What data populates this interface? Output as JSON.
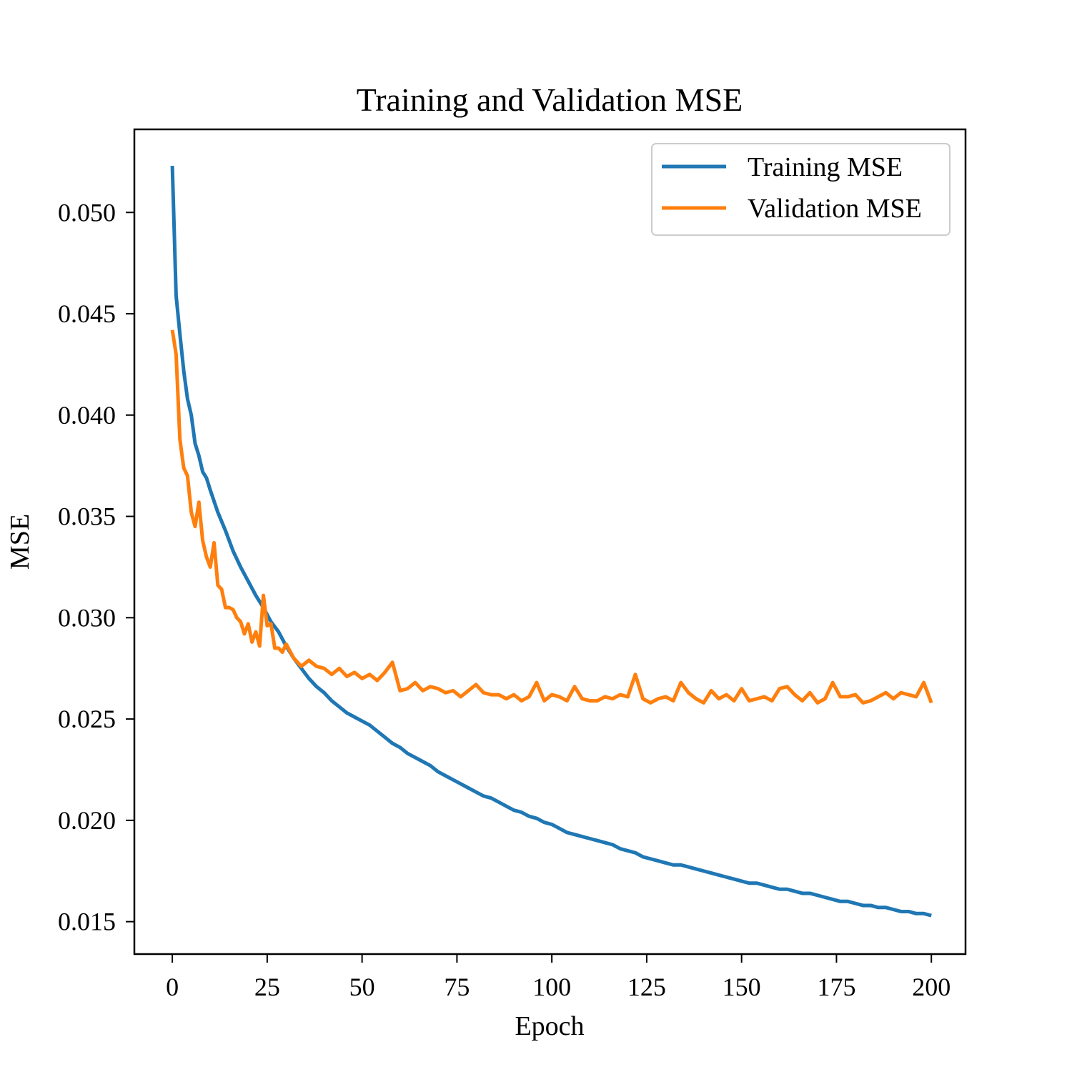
{
  "chart_data": {
    "type": "line",
    "title": "Training and Validation MSE",
    "xlabel": "Epoch",
    "ylabel": "MSE",
    "xlim": [
      -10,
      209
    ],
    "ylim": [
      0.0134,
      0.0541
    ],
    "xticks": [
      0,
      25,
      50,
      75,
      100,
      125,
      150,
      175,
      200
    ],
    "yticks": [
      0.015,
      0.02,
      0.025,
      0.03,
      0.035,
      0.04,
      0.045,
      0.05
    ],
    "ytick_labels": [
      "0.015",
      "0.020",
      "0.025",
      "0.030",
      "0.035",
      "0.040",
      "0.045",
      "0.050"
    ],
    "grid": false,
    "legend_position": "top-right",
    "series": [
      {
        "name": "Training MSE",
        "color": "#1f77b4",
        "x": [
          0,
          1,
          2,
          3,
          4,
          5,
          6,
          7,
          8,
          9,
          10,
          12,
          14,
          16,
          18,
          20,
          22,
          24,
          26,
          28,
          30,
          32,
          34,
          36,
          38,
          40,
          42,
          44,
          46,
          48,
          50,
          52,
          54,
          56,
          58,
          60,
          62,
          64,
          66,
          68,
          70,
          72,
          74,
          76,
          78,
          80,
          82,
          84,
          86,
          88,
          90,
          92,
          94,
          96,
          98,
          100,
          102,
          104,
          106,
          108,
          110,
          112,
          114,
          116,
          118,
          120,
          122,
          124,
          126,
          128,
          130,
          132,
          134,
          136,
          138,
          140,
          142,
          144,
          146,
          148,
          150,
          152,
          154,
          156,
          158,
          160,
          162,
          164,
          166,
          168,
          170,
          172,
          174,
          176,
          178,
          180,
          182,
          184,
          186,
          188,
          190,
          192,
          194,
          196,
          198,
          200
        ],
        "values": [
          0.0523,
          0.0459,
          0.044,
          0.0422,
          0.0408,
          0.04,
          0.0386,
          0.038,
          0.0372,
          0.0369,
          0.0363,
          0.0352,
          0.0343,
          0.0333,
          0.0325,
          0.0318,
          0.0311,
          0.0305,
          0.0298,
          0.0293,
          0.0286,
          0.028,
          0.0275,
          0.027,
          0.0266,
          0.0263,
          0.0259,
          0.0256,
          0.0253,
          0.0251,
          0.0249,
          0.0247,
          0.0244,
          0.0241,
          0.0238,
          0.0236,
          0.0233,
          0.0231,
          0.0229,
          0.0227,
          0.0224,
          0.0222,
          0.022,
          0.0218,
          0.0216,
          0.0214,
          0.0212,
          0.0211,
          0.0209,
          0.0207,
          0.0205,
          0.0204,
          0.0202,
          0.0201,
          0.0199,
          0.0198,
          0.0196,
          0.0194,
          0.0193,
          0.0192,
          0.0191,
          0.019,
          0.0189,
          0.0188,
          0.0186,
          0.0185,
          0.0184,
          0.0182,
          0.0181,
          0.018,
          0.0179,
          0.0178,
          0.0178,
          0.0177,
          0.0176,
          0.0175,
          0.0174,
          0.0173,
          0.0172,
          0.0171,
          0.017,
          0.0169,
          0.0169,
          0.0168,
          0.0167,
          0.0166,
          0.0166,
          0.0165,
          0.0164,
          0.0164,
          0.0163,
          0.0162,
          0.0161,
          0.016,
          0.016,
          0.0159,
          0.0158,
          0.0158,
          0.0157,
          0.0157,
          0.0156,
          0.0155,
          0.0155,
          0.0154,
          0.0154,
          0.0153
        ]
      },
      {
        "name": "Validation MSE",
        "color": "#ff7f0e",
        "x": [
          0,
          1,
          2,
          3,
          4,
          5,
          6,
          7,
          8,
          9,
          10,
          11,
          12,
          13,
          14,
          15,
          16,
          17,
          18,
          19,
          20,
          21,
          22,
          23,
          24,
          25,
          26,
          27,
          28,
          29,
          30,
          32,
          34,
          36,
          38,
          40,
          42,
          44,
          46,
          48,
          50,
          52,
          54,
          56,
          58,
          60,
          62,
          64,
          66,
          68,
          70,
          72,
          74,
          76,
          78,
          80,
          82,
          84,
          86,
          88,
          90,
          92,
          94,
          96,
          98,
          100,
          102,
          104,
          106,
          108,
          110,
          112,
          114,
          116,
          118,
          120,
          122,
          124,
          126,
          128,
          130,
          132,
          134,
          136,
          138,
          140,
          142,
          144,
          146,
          148,
          150,
          152,
          154,
          156,
          158,
          160,
          162,
          164,
          166,
          168,
          170,
          172,
          174,
          176,
          178,
          180,
          182,
          184,
          186,
          188,
          190,
          192,
          194,
          196,
          198,
          200
        ],
        "values": [
          0.0442,
          0.043,
          0.0388,
          0.0374,
          0.037,
          0.0352,
          0.0345,
          0.0357,
          0.0338,
          0.033,
          0.0325,
          0.0337,
          0.0316,
          0.0314,
          0.0305,
          0.0305,
          0.0304,
          0.03,
          0.0298,
          0.0292,
          0.0297,
          0.0288,
          0.0293,
          0.0286,
          0.0311,
          0.0296,
          0.0297,
          0.0285,
          0.0285,
          0.0283,
          0.0287,
          0.028,
          0.0276,
          0.0279,
          0.0276,
          0.0275,
          0.0272,
          0.0275,
          0.0271,
          0.0273,
          0.027,
          0.0272,
          0.0269,
          0.0273,
          0.0278,
          0.0264,
          0.0265,
          0.0268,
          0.0264,
          0.0266,
          0.0265,
          0.0263,
          0.0264,
          0.0261,
          0.0264,
          0.0267,
          0.0263,
          0.0262,
          0.0262,
          0.026,
          0.0262,
          0.0259,
          0.0261,
          0.0268,
          0.0259,
          0.0262,
          0.0261,
          0.0259,
          0.0266,
          0.026,
          0.0259,
          0.0259,
          0.0261,
          0.026,
          0.0262,
          0.0261,
          0.0272,
          0.026,
          0.0258,
          0.026,
          0.0261,
          0.0259,
          0.0268,
          0.0263,
          0.026,
          0.0258,
          0.0264,
          0.026,
          0.0262,
          0.0259,
          0.0265,
          0.0259,
          0.026,
          0.0261,
          0.0259,
          0.0265,
          0.0266,
          0.0262,
          0.0259,
          0.0263,
          0.0258,
          0.026,
          0.0268,
          0.0261,
          0.0261,
          0.0262,
          0.0258,
          0.0259,
          0.0261,
          0.0263,
          0.026,
          0.0263,
          0.0262,
          0.0261,
          0.0268,
          0.0258
        ]
      }
    ]
  }
}
